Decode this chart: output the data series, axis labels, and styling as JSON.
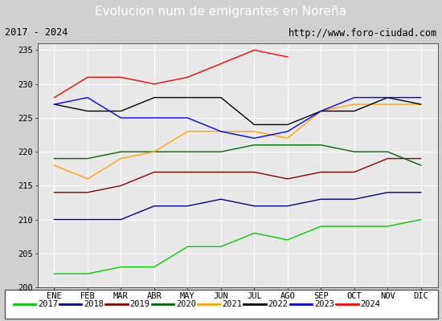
{
  "title": "Evolucion num de emigrantes en Noreña",
  "subtitle_left": "2017 - 2024",
  "subtitle_right": "http://www.foro-ciudad.com",
  "months": [
    "ENE",
    "FEB",
    "MAR",
    "ABR",
    "MAY",
    "JUN",
    "JUL",
    "AGO",
    "SEP",
    "OCT",
    "NOV",
    "DIC"
  ],
  "ylim": [
    200,
    236
  ],
  "yticks": [
    200,
    205,
    210,
    215,
    220,
    225,
    230,
    235
  ],
  "series": {
    "2017": {
      "color": "#00cc00",
      "values": [
        202,
        202,
        203,
        203,
        206,
        206,
        208,
        207,
        209,
        209,
        209,
        210
      ]
    },
    "2018": {
      "color": "#00008b",
      "values": [
        210,
        210,
        210,
        212,
        212,
        213,
        212,
        212,
        213,
        213,
        214,
        214
      ]
    },
    "2019": {
      "color": "#8b0000",
      "values": [
        214,
        214,
        215,
        217,
        217,
        217,
        217,
        216,
        217,
        217,
        219,
        219
      ]
    },
    "2020": {
      "color": "#006400",
      "values": [
        219,
        219,
        220,
        220,
        220,
        220,
        221,
        221,
        221,
        220,
        220,
        218
      ]
    },
    "2021": {
      "color": "#ffa500",
      "values": [
        218,
        216,
        219,
        220,
        223,
        223,
        223,
        222,
        226,
        227,
        227,
        227
      ]
    },
    "2022": {
      "color": "#000000",
      "values": [
        227,
        226,
        226,
        228,
        228,
        228,
        224,
        224,
        226,
        226,
        228,
        227
      ]
    },
    "2023": {
      "color": "#0000ff",
      "values": [
        227,
        228,
        225,
        225,
        225,
        223,
        222,
        223,
        226,
        228,
        228,
        228
      ]
    },
    "2024": {
      "color": "#ff0000",
      "values": [
        228,
        231,
        231,
        230,
        231,
        233,
        235,
        234,
        null,
        null,
        null,
        null
      ]
    }
  },
  "title_bg_color": "#4f6eb0",
  "title_text_color": "#ffffff",
  "subtitle_bg_color": "#d0d0d0",
  "plot_bg_color": "#e8e8e8",
  "grid_color": "#ffffff",
  "fig_bg_color": "#d0d0d0",
  "legend_order": [
    "2017",
    "2018",
    "2019",
    "2020",
    "2021",
    "2022",
    "2023",
    "2024"
  ]
}
